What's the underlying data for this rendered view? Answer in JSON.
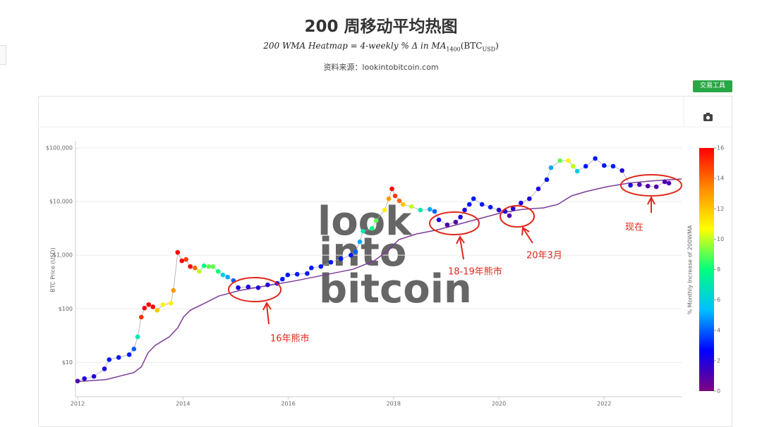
{
  "header": {
    "title": "200 周移动平均热图",
    "subtitle": {
      "text": "200 WMA Heatmap = 4-weekly % Δ in MA",
      "sub": "1400",
      "text2": "(BTC",
      "sub2": "USD",
      "text3": ")"
    },
    "source": "资料来源：lookintobitcoin.com",
    "button": "交易工具"
  },
  "chart_data": {
    "type": "scatter",
    "log_y": true,
    "grid": true,
    "y_label": "BTC Price (USD)",
    "colorbar_label": "% Monthly Increase of 200WMA",
    "xlim": [
      2011.96,
      2023.47
    ],
    "xticks": [
      2012,
      2014,
      2016,
      2018,
      2020,
      2022
    ],
    "ylim": [
      2.3,
      135000
    ],
    "yticks": [
      {
        "value": 10,
        "label": "$10"
      },
      {
        "value": 100,
        "label": "$100"
      },
      {
        "value": 1000,
        "label": "$1,000"
      },
      {
        "value": 10000,
        "label": "$10,000"
      },
      {
        "value": 100000,
        "label": "$100,000"
      }
    ],
    "clim": [
      0,
      16
    ],
    "cticks": [
      0,
      2,
      4,
      6,
      8,
      10,
      12,
      14,
      16
    ],
    "colorscale": [
      "#800080",
      "#0000ff",
      "#00bfff",
      "#00ff7f",
      "#ffff00",
      "#ff8c00",
      "#ff0000"
    ],
    "price_line_color": "#aaaaaa",
    "price": {
      "x": [
        2012.0,
        2012.13,
        2012.31,
        2012.51,
        2012.6,
        2012.78,
        2012.98,
        2013.07,
        2013.14,
        2013.21,
        2013.27,
        2013.35,
        2013.43,
        2013.51,
        2013.62,
        2013.77,
        2013.82,
        2013.9,
        2013.98,
        2014.06,
        2014.14,
        2014.23,
        2014.31,
        2014.4,
        2014.49,
        2014.57,
        2014.67,
        2014.76,
        2014.85,
        2014.96,
        2015.05,
        2015.24,
        2015.43,
        2015.61,
        2015.79,
        2015.89,
        2015.99,
        2016.17,
        2016.36,
        2016.44,
        2016.62,
        2016.81,
        2017.0,
        2017.19,
        2017.28,
        2017.36,
        2017.42,
        2017.59,
        2017.67,
        2017.83,
        2017.91,
        2017.97,
        2018.03,
        2018.11,
        2018.18,
        2018.34,
        2018.51,
        2018.69,
        2018.78,
        2018.86,
        2019.02,
        2019.18,
        2019.27,
        2019.35,
        2019.44,
        2019.52,
        2019.68,
        2019.84,
        2020.0,
        2020.12,
        2020.2,
        2020.27,
        2020.42,
        2020.58,
        2020.75,
        2020.91,
        2020.99,
        2021.16,
        2021.32,
        2021.41,
        2021.49,
        2021.65,
        2021.83,
        2022.0,
        2022.17,
        2022.34,
        2022.5,
        2022.67,
        2022.83,
        2022.99,
        2023.15,
        2023.23
      ],
      "y": [
        4.5,
        5.0,
        5.5,
        7.6,
        11.3,
        12.4,
        14,
        17.8,
        30,
        70,
        103,
        120,
        109,
        94,
        120,
        127,
        220,
        1130,
        785,
        834,
        615,
        579,
        498,
        635,
        615,
        615,
        498,
        428,
        391,
        336,
        248,
        256,
        248,
        280,
        298,
        357,
        428,
        442,
        455,
        579,
        615,
        738,
        859,
        1000,
        1164,
        1778,
        2800,
        3162,
        4416,
        6950,
        11300,
        17260,
        12740,
        10300,
        8850,
        8090,
        6950,
        7160,
        6550,
        4550,
        3680,
        4150,
        5140,
        6950,
        8850,
        11300,
        8850,
        7850,
        6950,
        6550,
        5460,
        7380,
        9420,
        11300,
        17260,
        25590,
        42850,
        57900,
        57900,
        45500,
        36800,
        45500,
        63500,
        46900,
        45500,
        37900,
        20100,
        20700,
        19450,
        18880,
        23350,
        22000
      ],
      "heat": [
        1,
        2,
        2,
        2,
        3,
        3,
        3,
        4,
        7,
        15,
        16,
        16,
        16,
        12,
        11,
        11,
        13,
        16,
        16,
        15,
        16,
        14,
        10,
        8,
        9,
        9,
        8,
        6,
        5,
        4,
        2,
        2,
        2,
        2,
        2,
        3,
        3,
        3,
        3,
        3,
        3,
        3,
        3,
        3,
        4,
        5,
        7,
        8,
        9,
        11,
        13,
        16,
        15,
        14,
        12,
        10,
        7,
        5,
        4,
        2,
        1,
        1,
        2,
        2,
        3,
        3,
        3,
        3,
        2,
        2,
        1,
        2,
        2,
        2,
        2,
        3,
        5,
        9,
        11,
        10,
        6,
        3,
        3,
        3,
        3,
        2,
        2,
        1,
        1,
        1,
        1,
        1
      ]
    },
    "wma": {
      "color": "#7d3c98",
      "x": [
        2012.0,
        2012.54,
        2013.07,
        2013.21,
        2013.34,
        2013.47,
        2013.74,
        2013.9,
        2014.01,
        2014.14,
        2014.41,
        2014.68,
        2015.08,
        2015.62,
        2016.16,
        2016.69,
        2017.23,
        2017.63,
        2017.9,
        2018.1,
        2018.43,
        2018.84,
        2019.24,
        2019.64,
        2020.04,
        2020.45,
        2020.85,
        2021.12,
        2021.38,
        2021.65,
        2022.05,
        2022.46,
        2022.86,
        2023.26,
        2023.47
      ],
      "y": [
        4.4,
        4.8,
        6.5,
        8.3,
        15.3,
        20.7,
        30,
        44,
        70,
        94,
        127,
        173,
        220,
        272,
        336,
        428,
        546,
        785,
        1236,
        1945,
        2483,
        2978,
        3790,
        4830,
        6150,
        7160,
        7620,
        8850,
        12740,
        15280,
        18880,
        22000,
        24100,
        25590,
        26360
      ]
    },
    "watermark": [
      "look",
      "into",
      "bitcoin"
    ],
    "annotations": [
      "16年熊市",
      "18-19年熊市",
      "20年3月",
      "现在"
    ]
  }
}
